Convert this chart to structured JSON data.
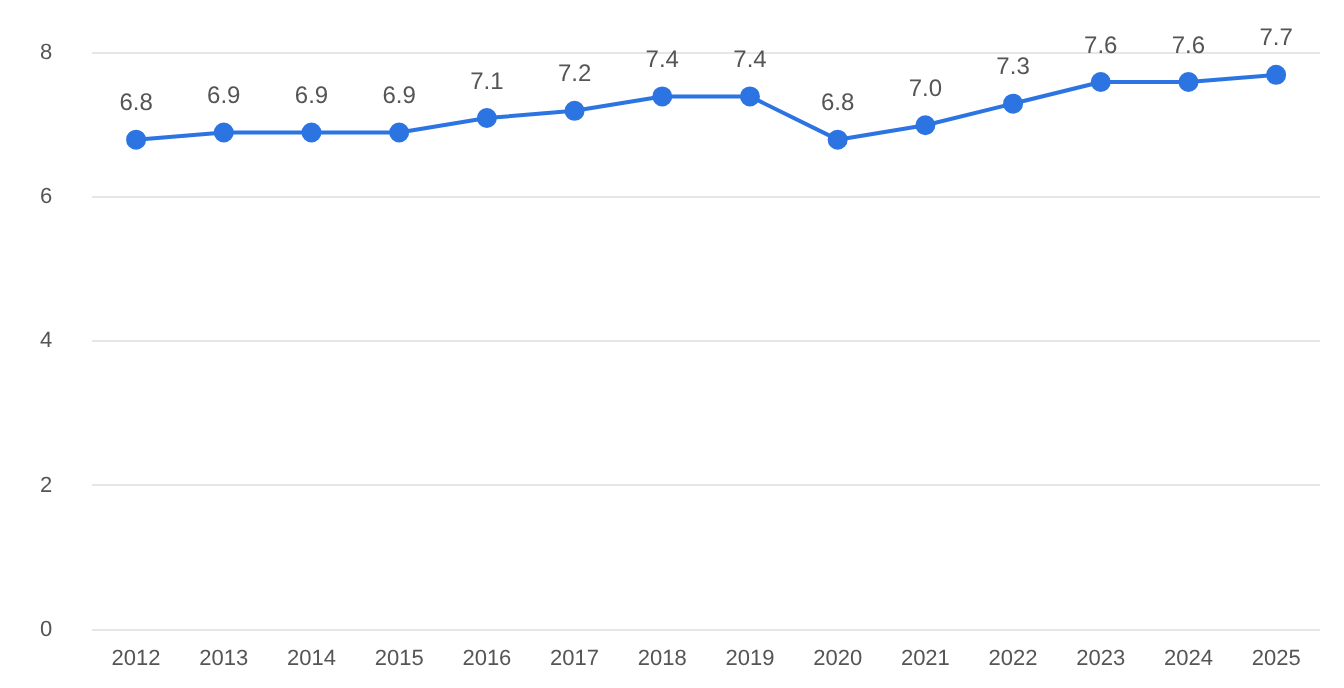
{
  "chart_data": {
    "type": "line",
    "categories": [
      "2012",
      "2013",
      "2014",
      "2015",
      "2016",
      "2017",
      "2018",
      "2019",
      "2020",
      "2021",
      "2022",
      "2023",
      "2024",
      "2025"
    ],
    "series": [
      {
        "color": "#2b74e2",
        "values": [
          6.8,
          6.9,
          6.9,
          6.9,
          7.1,
          7.2,
          7.4,
          7.4,
          6.8,
          7.0,
          7.3,
          7.6,
          7.6,
          7.7
        ],
        "value_labels": [
          "6.8",
          "6.9",
          "6.9",
          "6.9",
          "7.1",
          "7.2",
          "7.4",
          "7.4",
          "6.8",
          "7.0",
          "7.3",
          "7.6",
          "7.6",
          "7.7"
        ]
      }
    ],
    "ylim": [
      0,
      8
    ],
    "yticks": [
      0,
      2,
      4,
      6,
      8
    ],
    "grid": "y",
    "marker": "circle",
    "line_style": "solid",
    "legend": false
  }
}
